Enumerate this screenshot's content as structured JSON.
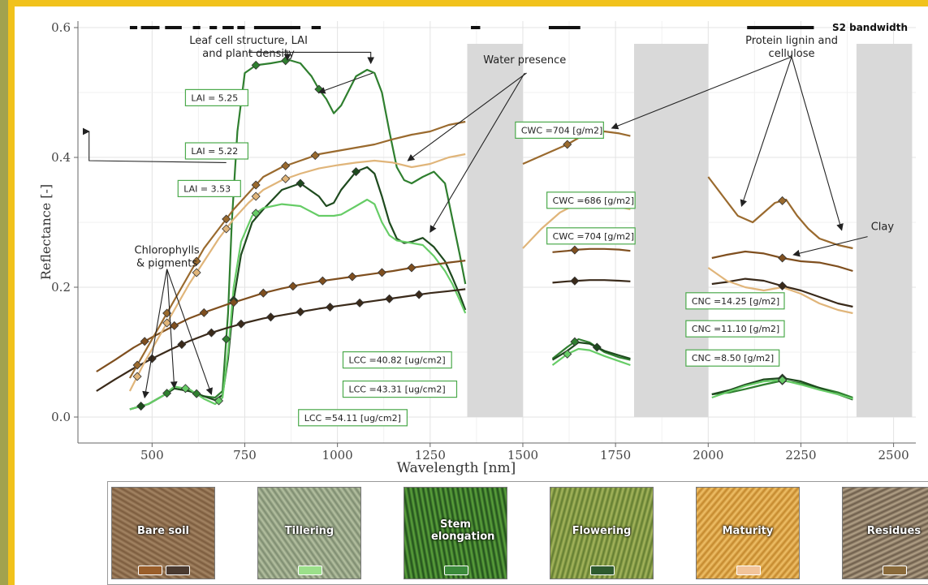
{
  "chart_data": {
    "type": "line",
    "xlabel": "Wavelength  [nm]",
    "ylabel": "Reflectance [-]",
    "xlim": [
      300,
      2560
    ],
    "ylim": [
      -0.04,
      0.61
    ],
    "xticks": [
      500,
      750,
      1000,
      1250,
      1500,
      1750,
      2000,
      2250,
      2500
    ],
    "yticks": [
      0.0,
      0.2,
      0.4,
      0.6
    ],
    "xtick_labels": [
      "500",
      "750",
      "1000",
      "1250",
      "1500",
      "1750",
      "2000",
      "2250",
      "2500"
    ],
    "ytick_labels": [
      "0.0",
      "0.2",
      "0.4",
      "0.6"
    ],
    "grid": true,
    "masked_bands": [
      [
        1350,
        1500
      ],
      [
        1800,
        2000
      ],
      [
        2400,
        2550
      ]
    ],
    "s2_bandwidth_label": "S2 bandwidth",
    "s2_bands": [
      [
        440,
        460
      ],
      [
        470,
        520
      ],
      [
        535,
        580
      ],
      [
        610,
        630
      ],
      [
        655,
        675
      ],
      [
        690,
        720
      ],
      [
        730,
        750
      ],
      [
        775,
        900
      ],
      [
        930,
        955
      ],
      [
        1360,
        1385
      ],
      [
        1570,
        1655
      ],
      [
        2105,
        2285
      ]
    ],
    "annotations": [
      {
        "text": "Leaf cell structure, LAI",
        "line2": "and plant density",
        "style": "plain",
        "anchor_x": 760,
        "anchor_y": 0.575
      },
      {
        "text": "Water presence",
        "style": "plain",
        "anchor_x": 1505,
        "anchor_y": 0.545
      },
      {
        "text": "Protein lignin and",
        "line2": "cellulose",
        "style": "plain",
        "anchor_x": 2225,
        "anchor_y": 0.575
      },
      {
        "text": "Chlorophylls",
        "line2": "& pigments",
        "style": "plain",
        "anchor_x": 540,
        "anchor_y": 0.252
      },
      {
        "text": "Clay",
        "style": "plain",
        "anchor_x": 2470,
        "anchor_y": 0.288
      },
      {
        "text": "LAI = 5.25",
        "style": "box",
        "anchor_x": 590,
        "anchor_y": 0.492
      },
      {
        "text": "LAI = 5.22",
        "style": "box",
        "anchor_x": 590,
        "anchor_y": 0.41
      },
      {
        "text": "LAI = 3.53",
        "style": "box",
        "anchor_x": 570,
        "anchor_y": 0.352
      },
      {
        "text": "CWC =704 [g/m2]",
        "style": "box",
        "anchor_x": 1480,
        "anchor_y": 0.442
      },
      {
        "text": "CWC =686 [g/m2]",
        "style": "box",
        "anchor_x": 1565,
        "anchor_y": 0.334
      },
      {
        "text": "CWC =704 [g/m2]",
        "style": "box",
        "anchor_x": 1565,
        "anchor_y": 0.279
      },
      {
        "text": "LCC =40.82 [ug/cm2]",
        "style": "box",
        "anchor_x": 1015,
        "anchor_y": 0.088
      },
      {
        "text": "LCC =43.31  [ug/cm2]",
        "style": "box",
        "anchor_x": 1015,
        "anchor_y": 0.043
      },
      {
        "text": "LCC =54.11 [ug/cm2]",
        "style": "box",
        "anchor_x": 895,
        "anchor_y": -0.001
      },
      {
        "text": "CNC =14.25 [g/m2]",
        "style": "box",
        "anchor_x": 1940,
        "anchor_y": 0.179
      },
      {
        "text": "CNC =11.10 [g/m2]",
        "style": "box",
        "anchor_x": 1940,
        "anchor_y": 0.136
      },
      {
        "text": "CNC =8.50 [g/m2]",
        "style": "box",
        "anchor_x": 1940,
        "anchor_y": 0.091
      }
    ],
    "series": [
      {
        "color": "#2f7f2f",
        "x": [
          440,
          490,
          530,
          560,
          600,
          640,
          670,
          690,
          705,
          715,
          730,
          750,
          780,
          820,
          850,
          870,
          900,
          930,
          950,
          970,
          990,
          1010,
          1050,
          1080,
          1100,
          1120,
          1140,
          1160,
          1180,
          1200,
          1230,
          1260,
          1290,
          1310,
          1330,
          1345,
          1580,
          1620,
          1650,
          1680,
          1720,
          1760,
          1790,
          2010,
          2060,
          2100,
          2150,
          2200,
          2250,
          2300,
          2350,
          2390
        ],
        "y": [
          0.012,
          0.02,
          0.033,
          0.044,
          0.04,
          0.032,
          0.03,
          0.04,
          0.16,
          0.3,
          0.44,
          0.53,
          0.542,
          0.545,
          0.548,
          0.55,
          0.545,
          0.525,
          0.505,
          0.49,
          0.468,
          0.48,
          0.525,
          0.535,
          0.53,
          0.5,
          0.44,
          0.385,
          0.365,
          0.36,
          0.37,
          0.378,
          0.36,
          0.305,
          0.25,
          0.205,
          0.09,
          0.108,
          0.12,
          0.115,
          0.1,
          0.092,
          0.088,
          0.035,
          0.038,
          0.043,
          0.05,
          0.056,
          0.052,
          0.045,
          0.038,
          0.03
        ]
      },
      {
        "color": "#1e4a1e",
        "x": [
          440,
          490,
          530,
          560,
          600,
          640,
          670,
          690,
          705,
          720,
          740,
          770,
          800,
          850,
          900,
          950,
          970,
          990,
          1010,
          1050,
          1080,
          1100,
          1120,
          1140,
          1160,
          1180,
          1200,
          1230,
          1260,
          1290,
          1310,
          1330,
          1345,
          1580,
          1620,
          1650,
          1680,
          1720,
          1760,
          1790,
          2010,
          2060,
          2100,
          2150,
          2200,
          2250,
          2300,
          2350,
          2390
        ],
        "y": [
          0.012,
          0.02,
          0.033,
          0.044,
          0.04,
          0.032,
          0.026,
          0.034,
          0.09,
          0.18,
          0.25,
          0.3,
          0.32,
          0.35,
          0.36,
          0.34,
          0.325,
          0.33,
          0.35,
          0.378,
          0.385,
          0.375,
          0.34,
          0.3,
          0.275,
          0.268,
          0.27,
          0.276,
          0.262,
          0.24,
          0.215,
          0.188,
          0.165,
          0.088,
          0.102,
          0.115,
          0.113,
          0.102,
          0.095,
          0.09,
          0.035,
          0.042,
          0.05,
          0.058,
          0.06,
          0.055,
          0.045,
          0.035,
          0.027
        ]
      },
      {
        "color": "#66cc66",
        "x": [
          440,
          490,
          530,
          560,
          600,
          640,
          670,
          690,
          705,
          720,
          740,
          770,
          800,
          850,
          900,
          950,
          970,
          990,
          1010,
          1050,
          1080,
          1100,
          1120,
          1140,
          1160,
          1180,
          1200,
          1230,
          1260,
          1290,
          1310,
          1330,
          1345,
          1580,
          1620,
          1650,
          1680,
          1720,
          1760,
          1790,
          2010,
          2060,
          2100,
          2150,
          2200,
          2250,
          2300,
          2350,
          2390
        ],
        "y": [
          0.012,
          0.02,
          0.033,
          0.047,
          0.043,
          0.028,
          0.02,
          0.03,
          0.1,
          0.2,
          0.27,
          0.31,
          0.322,
          0.328,
          0.325,
          0.31,
          0.31,
          0.31,
          0.312,
          0.325,
          0.335,
          0.328,
          0.3,
          0.28,
          0.272,
          0.27,
          0.268,
          0.265,
          0.248,
          0.225,
          0.205,
          0.18,
          0.16,
          0.08,
          0.097,
          0.105,
          0.103,
          0.094,
          0.086,
          0.08,
          0.03,
          0.04,
          0.048,
          0.055,
          0.057,
          0.05,
          0.042,
          0.035,
          0.028
        ]
      },
      {
        "color": "#7f4f1f",
        "x": [
          350,
          400,
          450,
          500,
          550,
          600,
          650,
          700,
          750,
          800,
          850,
          900,
          950,
          1000,
          1050,
          1100,
          1150,
          1200,
          1250,
          1300,
          1345,
          1580,
          1620,
          1650,
          1680,
          1720,
          1760,
          1790,
          2010,
          2050,
          2100,
          2150,
          2200,
          2250,
          2300,
          2350,
          2390
        ],
        "y": [
          0.07,
          0.088,
          0.107,
          0.123,
          0.138,
          0.152,
          0.163,
          0.173,
          0.182,
          0.191,
          0.198,
          0.204,
          0.209,
          0.213,
          0.217,
          0.221,
          0.225,
          0.23,
          0.234,
          0.238,
          0.241,
          0.254,
          0.256,
          0.258,
          0.259,
          0.259,
          0.258,
          0.256,
          0.245,
          0.25,
          0.255,
          0.252,
          0.245,
          0.24,
          0.238,
          0.232,
          0.225
        ]
      },
      {
        "color": "#3a2a1a",
        "x": [
          350,
          400,
          450,
          500,
          550,
          600,
          650,
          700,
          750,
          800,
          850,
          900,
          950,
          1000,
          1050,
          1100,
          1150,
          1200,
          1250,
          1300,
          1345,
          1580,
          1620,
          1650,
          1680,
          1720,
          1760,
          1790,
          2010,
          2050,
          2100,
          2150,
          2200,
          2250,
          2300,
          2350,
          2390
        ],
        "y": [
          0.04,
          0.058,
          0.075,
          0.09,
          0.104,
          0.117,
          0.128,
          0.137,
          0.145,
          0.152,
          0.157,
          0.162,
          0.167,
          0.171,
          0.175,
          0.179,
          0.183,
          0.187,
          0.191,
          0.194,
          0.197,
          0.207,
          0.209,
          0.21,
          0.211,
          0.211,
          0.21,
          0.209,
          0.205,
          0.208,
          0.213,
          0.21,
          0.202,
          0.195,
          0.185,
          0.175,
          0.17
        ]
      },
      {
        "color": "#9a6a2e",
        "x": [
          440,
          480,
          520,
          560,
          600,
          640,
          680,
          720,
          760,
          800,
          850,
          900,
          950,
          1000,
          1050,
          1100,
          1150,
          1200,
          1250,
          1300,
          1345,
          1500,
          1540,
          1580,
          1620,
          1650,
          1680,
          1720,
          1760,
          1790,
          2000,
          2040,
          2080,
          2120,
          2150,
          2180,
          2210,
          2240,
          2270,
          2300,
          2350,
          2390
        ],
        "y": [
          0.06,
          0.1,
          0.14,
          0.18,
          0.22,
          0.26,
          0.29,
          0.32,
          0.345,
          0.37,
          0.385,
          0.395,
          0.405,
          0.41,
          0.415,
          0.42,
          0.428,
          0.435,
          0.44,
          0.45,
          0.455,
          0.39,
          0.4,
          0.41,
          0.42,
          0.43,
          0.435,
          0.44,
          0.437,
          0.433,
          0.37,
          0.34,
          0.31,
          0.3,
          0.315,
          0.33,
          0.335,
          0.31,
          0.29,
          0.275,
          0.265,
          0.26
        ]
      },
      {
        "color": "#e0b57a",
        "x": [
          440,
          480,
          520,
          560,
          600,
          640,
          680,
          720,
          760,
          800,
          850,
          900,
          950,
          1000,
          1050,
          1100,
          1150,
          1200,
          1250,
          1300,
          1345,
          1500,
          1550,
          1600,
          1650,
          1700,
          1750,
          1790,
          2000,
          2050,
          2100,
          2150,
          2200,
          2250,
          2300,
          2350,
          2390
        ],
        "y": [
          0.04,
          0.085,
          0.125,
          0.165,
          0.205,
          0.24,
          0.275,
          0.305,
          0.33,
          0.35,
          0.365,
          0.375,
          0.383,
          0.388,
          0.392,
          0.395,
          0.392,
          0.385,
          0.39,
          0.4,
          0.405,
          0.26,
          0.29,
          0.315,
          0.33,
          0.33,
          0.325,
          0.32,
          0.23,
          0.21,
          0.2,
          0.195,
          0.2,
          0.19,
          0.175,
          0.165,
          0.16
        ]
      }
    ],
    "markers": [
      {
        "series": 0,
        "x": [
          540,
          620,
          700,
          780,
          860,
          950,
          1640,
          2200
        ]
      },
      {
        "series": 1,
        "x": [
          470,
          720,
          900,
          1050,
          1700,
          2200
        ]
      },
      {
        "series": 2,
        "x": [
          590,
          680,
          780,
          1620,
          2200
        ]
      },
      {
        "series": 3,
        "x": [
          480,
          560,
          640,
          720,
          800,
          880,
          960,
          1040,
          1120,
          1200,
          1640,
          2200
        ]
      },
      {
        "series": 4,
        "x": [
          500,
          580,
          660,
          740,
          820,
          900,
          980,
          1060,
          1140,
          1220,
          1640,
          2200
        ]
      },
      {
        "series": 5,
        "x": [
          460,
          540,
          620,
          700,
          780,
          860,
          940,
          1620,
          2200
        ]
      },
      {
        "series": 6,
        "x": [
          460,
          540,
          620,
          700,
          780,
          860
        ]
      }
    ]
  },
  "stages": [
    {
      "label": "Bare soil",
      "colors": [
        "#7a5a3c",
        "#a58665"
      ],
      "swatches": [
        "#9a5e2a",
        "#4a3a30"
      ]
    },
    {
      "label": "Tillering",
      "colors": [
        "#7b8a6e",
        "#b7c3a3"
      ],
      "swatches": [
        "#9be08a"
      ]
    },
    {
      "label": "Stem elongation",
      "colors": [
        "#1f4d1a",
        "#5ea63e"
      ],
      "swatches": [
        "#3b8a3b"
      ]
    },
    {
      "label": "Flowering",
      "colors": [
        "#5f7a2e",
        "#a8b85e"
      ],
      "swatches": [
        "#2e5a2e"
      ]
    },
    {
      "label": "Maturity",
      "colors": [
        "#c2862a",
        "#f1c26a"
      ],
      "swatches": [
        "#f2c49a"
      ]
    },
    {
      "label": "Residues",
      "colors": [
        "#6a5a48",
        "#b5a48a"
      ],
      "swatches": [
        "#8a6a3a"
      ]
    }
  ]
}
